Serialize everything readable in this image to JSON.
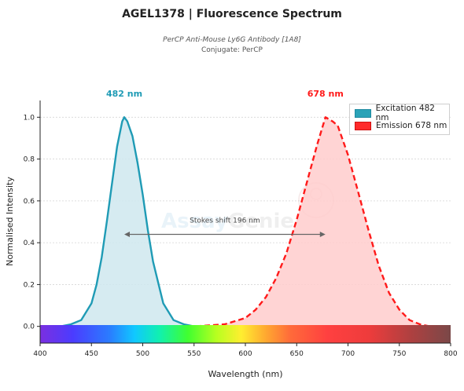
{
  "header": {
    "title": "AGEL1378  |  Fluorescence Spectrum",
    "subtitle": "PerCP Anti-Mouse Ly6G Antibody [1A8]",
    "conjugate": "Conjugate: PerCP"
  },
  "colors": {
    "excitation_line": "#1f9bb5",
    "excitation_fill": "#cfe8ef",
    "emission_line": "#ff1a1a",
    "emission_fill": "#ffcccc"
  },
  "chart_data": {
    "type": "line",
    "xlabel": "Wavelength (nm)",
    "ylabel": "Normalised Intensity",
    "xlim": [
      400,
      800
    ],
    "ylim": [
      -0.08,
      1.08
    ],
    "xticks": [
      "400",
      "450",
      "500",
      "550",
      "600",
      "650",
      "700",
      "750",
      "800"
    ],
    "yticks": [
      "0.0",
      "0.2",
      "0.4",
      "0.6",
      "0.8",
      "1.0"
    ],
    "grid": "horizontal-dotted",
    "legend_position": "top-right",
    "series": [
      {
        "name": "Excitation  482 nm",
        "style": "solid-filled",
        "x": [
          400,
          410,
          420,
          430,
          440,
          450,
          455,
          460,
          465,
          470,
          475,
          480,
          482,
          485,
          490,
          495,
          500,
          505,
          510,
          520,
          530,
          540,
          550,
          600,
          650,
          700,
          750,
          800
        ],
        "y": [
          0.0,
          0.0,
          0.0,
          0.01,
          0.03,
          0.11,
          0.2,
          0.33,
          0.5,
          0.68,
          0.86,
          0.98,
          1.0,
          0.98,
          0.91,
          0.78,
          0.63,
          0.46,
          0.31,
          0.11,
          0.03,
          0.01,
          0.0,
          0.0,
          0.0,
          0.0,
          0.0,
          0.0
        ]
      },
      {
        "name": "Emission  678 nm",
        "style": "dashed-filled",
        "x": [
          400,
          450,
          500,
          550,
          580,
          600,
          610,
          620,
          630,
          640,
          650,
          660,
          670,
          678,
          685,
          690,
          700,
          710,
          720,
          730,
          740,
          750,
          760,
          770,
          780,
          790,
          800
        ],
        "y": [
          0.0,
          0.0,
          0.0,
          0.0,
          0.01,
          0.04,
          0.08,
          0.14,
          0.23,
          0.35,
          0.51,
          0.69,
          0.87,
          1.0,
          0.98,
          0.96,
          0.82,
          0.64,
          0.46,
          0.29,
          0.16,
          0.08,
          0.03,
          0.01,
          0.0,
          0.0,
          0.0
        ]
      }
    ],
    "annotations": {
      "excitation_peak": "482 nm",
      "emission_peak": "678 nm",
      "stokes_shift": "Stokes shift  196 nm",
      "stokes_from": 482,
      "stokes_to": 678,
      "stokes_y": 0.44
    }
  }
}
